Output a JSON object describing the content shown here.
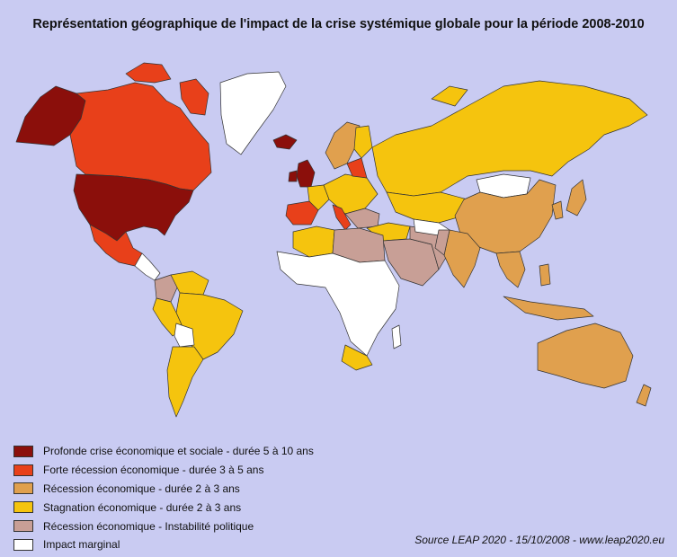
{
  "title": "Représentation géographique de l'impact de la crise systémique globale pour la période 2008-2010",
  "colors": {
    "background": "#c9cbf2",
    "profonde": "#8b0f0b",
    "forte": "#e8401a",
    "recession": "#e0a04e",
    "stagnation": "#f5c40e",
    "instabilite": "#c89f96",
    "marginal": "#ffffff",
    "border": "#333333"
  },
  "legend": [
    {
      "label": "Profonde crise économique et sociale - durée 5 à 10 ans",
      "color": "#8b0f0b"
    },
    {
      "label": "Forte récession économique - durée 3 à 5 ans",
      "color": "#e8401a"
    },
    {
      "label": "Récession économique - durée 2 à 3 ans",
      "color": "#e0a04e"
    },
    {
      "label": "Stagnation économique - durée 2 à 3 ans",
      "color": "#f5c40e"
    },
    {
      "label": "Récession économique - Instabilité politique",
      "color": "#c89f96"
    },
    {
      "label": "Impact marginal",
      "color": "#ffffff"
    }
  ],
  "source": "Source LEAP 2020 - 15/10/2008 - www.leap2020.eu"
}
